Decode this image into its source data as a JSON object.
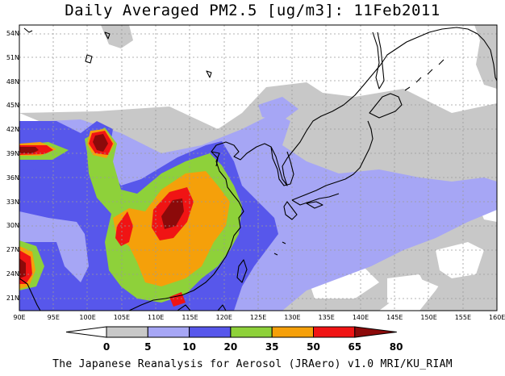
{
  "title": "Daily Averaged PM2.5 [ug/m3]: 11Feb2011",
  "footer": "The Japanese Reanalysis for Aerosol (JRAero) v1.0 MRI/KU_RIAM",
  "lat_labels": [
    "54N",
    "51N",
    "48N",
    "45N",
    "42N",
    "39N",
    "36N",
    "33N",
    "30N",
    "27N",
    "24N",
    "21N"
  ],
  "lon_labels": [
    "90E",
    "95E",
    "100E",
    "105E",
    "110E",
    "115E",
    "120E",
    "125E",
    "130E",
    "135E",
    "140E",
    "145E",
    "150E",
    "155E",
    "160E"
  ],
  "colorbar": {
    "thresholds": [
      "0",
      "5",
      "10",
      "20",
      "35",
      "50",
      "65",
      "80"
    ],
    "colors": [
      "#ffffff",
      "#c8c8c8",
      "#a6a6f5",
      "#5757eb",
      "#8ed13a",
      "#f5a00a",
      "#f01414",
      "#8c0a0a"
    ]
  },
  "fields": {
    "background": "#ffffff",
    "light_gray": "#c8c8c8",
    "light_blue": "#a6a6f5",
    "blue": "#5757eb",
    "green": "#8ed13a",
    "orange": "#f5a00a",
    "red": "#f01414",
    "dark_red": "#8c0a0a",
    "coast": "#000000",
    "grid": "#9a9a9a"
  }
}
